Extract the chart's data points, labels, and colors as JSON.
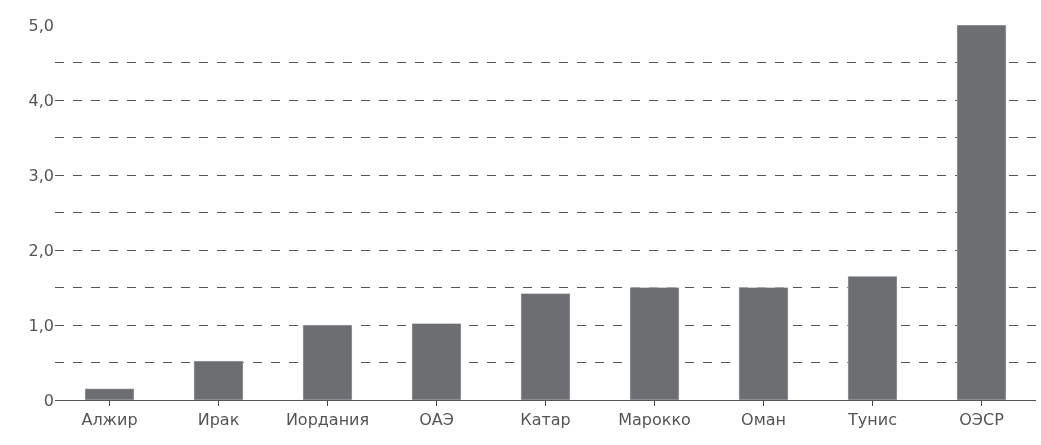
{
  "chart_data": {
    "type": "bar",
    "categories": [
      "Алжир",
      "Ирак",
      "Иордания",
      "ОАЭ",
      "Катар",
      "Марокко",
      "Оман",
      "Тунис",
      "ОЭСР"
    ],
    "values": [
      0.15,
      0.52,
      1.0,
      1.02,
      1.42,
      1.5,
      1.5,
      1.65,
      5.0
    ],
    "color": "#6d6e71",
    "ylim": [
      0,
      5.0
    ],
    "yticks": [
      0,
      {
        "value": 0.5,
        "label": null
      },
      {
        "value": 1,
        "label": "1,0"
      },
      {
        "value": 1.5,
        "label": null
      },
      {
        "value": 2,
        "label": "2,0"
      },
      {
        "value": 2.5,
        "label": null
      },
      {
        "value": 3,
        "label": "3,0"
      },
      {
        "value": 3.5,
        "label": null
      },
      {
        "value": 4,
        "label": "4,0"
      },
      {
        "value": 4.5,
        "label": null
      },
      {
        "value": 5,
        "label": "5,0"
      }
    ],
    "grid": "y",
    "line_style": "dashed"
  }
}
